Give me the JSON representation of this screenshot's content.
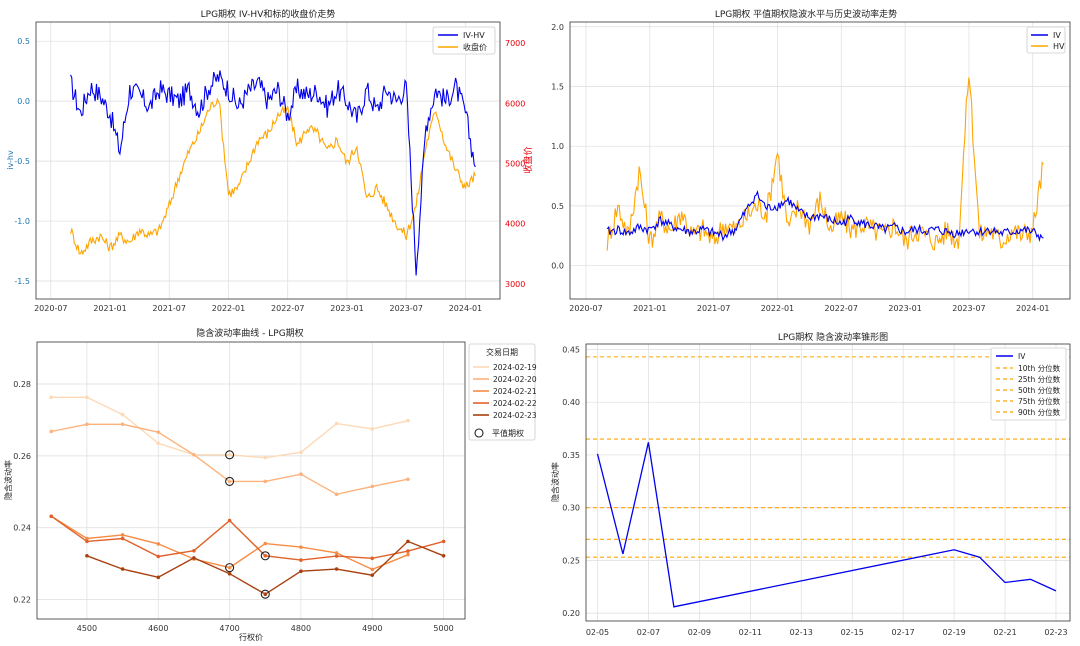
{
  "chart_data": [
    {
      "type": "line",
      "title": "LPG期权 IV-HV和标的收盘价走势",
      "xlabel": "",
      "ylabel": "iv-hv",
      "y2label": "收盘价",
      "x_ticks": [
        "2020-07",
        "2021-01",
        "2021-07",
        "2022-01",
        "2022-07",
        "2023-01",
        "2023-07",
        "2024-01"
      ],
      "y_ticks": [
        "0.5",
        "0.0",
        "-0.5",
        "-1.0",
        "-1.5"
      ],
      "y2_ticks": [
        "7000",
        "6000",
        "5000",
        "4000",
        "3000"
      ],
      "ylim": [
        -1.65,
        0.66
      ],
      "y2lim": [
        2750,
        7350
      ],
      "legend": "top-right",
      "series": [
        {
          "name": "IV-HV",
          "axis": "left",
          "color": "#0000ee",
          "x": [
            "2020-09",
            "2020-10",
            "2020-11",
            "2020-12",
            "2021-01",
            "2021-02",
            "2021-03",
            "2021-04",
            "2021-05",
            "2021-06",
            "2021-07",
            "2021-08",
            "2021-09",
            "2021-10",
            "2021-11",
            "2021-12",
            "2022-01",
            "2022-02",
            "2022-03",
            "2022-04",
            "2022-05",
            "2022-06",
            "2022-07",
            "2022-08",
            "2022-09",
            "2022-10",
            "2022-11",
            "2022-12",
            "2023-01",
            "2023-02",
            "2023-03",
            "2023-04",
            "2023-05",
            "2023-06",
            "2023-07",
            "2023-08",
            "2023-09",
            "2023-10",
            "2023-11",
            "2023-12",
            "2024-01",
            "2024-02"
          ],
          "values": [
            0.15,
            -0.1,
            0.12,
            0.05,
            -0.1,
            -0.42,
            0.1,
            0.05,
            -0.05,
            0.1,
            0.05,
            0.0,
            0.1,
            -0.08,
            0.12,
            0.2,
            0.1,
            -0.05,
            0.08,
            0.15,
            0.0,
            0.1,
            -0.12,
            0.1,
            0.05,
            0.08,
            -0.05,
            0.1,
            0.0,
            -0.15,
            0.1,
            -0.08,
            0.1,
            0.0,
            0.12,
            -1.4,
            -0.2,
            0.1,
            0.0,
            0.12,
            -0.1,
            -0.55
          ]
        },
        {
          "name": "收盘价",
          "axis": "right",
          "color": "#ffa500",
          "x": [
            "2020-09",
            "2020-10",
            "2020-11",
            "2020-12",
            "2021-01",
            "2021-02",
            "2021-03",
            "2021-04",
            "2021-05",
            "2021-06",
            "2021-07",
            "2021-08",
            "2021-09",
            "2021-10",
            "2021-11",
            "2021-12",
            "2022-01",
            "2022-02",
            "2022-03",
            "2022-04",
            "2022-05",
            "2022-06",
            "2022-07",
            "2022-08",
            "2022-09",
            "2022-10",
            "2022-11",
            "2022-12",
            "2023-01",
            "2023-02",
            "2023-03",
            "2023-04",
            "2023-05",
            "2023-06",
            "2023-07",
            "2023-08",
            "2023-09",
            "2023-10",
            "2023-11",
            "2023-12",
            "2024-01",
            "2024-02"
          ],
          "values": [
            3900,
            3500,
            3700,
            3800,
            3600,
            3800,
            3700,
            3900,
            3800,
            3900,
            4300,
            4800,
            5200,
            5500,
            5900,
            6100,
            4500,
            4600,
            5000,
            5400,
            5500,
            5800,
            5900,
            5300,
            5600,
            5500,
            5200,
            5400,
            5000,
            5300,
            4400,
            4600,
            4300,
            4000,
            3800,
            4300,
            5300,
            5900,
            5300,
            4900,
            4600,
            4800
          ]
        }
      ]
    },
    {
      "type": "line",
      "title": "LPG期权 平值期权隐波水平与历史波动率走势",
      "xlabel": "",
      "ylabel": "",
      "x_ticks": [
        "2020-07",
        "2021-01",
        "2021-07",
        "2022-01",
        "2022-07",
        "2023-01",
        "2023-07",
        "2024-01"
      ],
      "y_ticks": [
        "2.0",
        "1.5",
        "1.0",
        "0.5",
        "0.0"
      ],
      "ylim": [
        -0.28,
        2.04
      ],
      "legend": "top-right",
      "series": [
        {
          "name": "IV",
          "color": "#0000ee",
          "x": [
            "2020-09",
            "2020-10",
            "2020-11",
            "2020-12",
            "2021-01",
            "2021-02",
            "2021-03",
            "2021-04",
            "2021-05",
            "2021-06",
            "2021-07",
            "2021-08",
            "2021-09",
            "2021-10",
            "2021-11",
            "2021-12",
            "2022-01",
            "2022-02",
            "2022-03",
            "2022-04",
            "2022-05",
            "2022-06",
            "2022-07",
            "2022-08",
            "2022-09",
            "2022-10",
            "2022-11",
            "2022-12",
            "2023-01",
            "2023-02",
            "2023-03",
            "2023-04",
            "2023-05",
            "2023-06",
            "2023-07",
            "2023-08",
            "2023-09",
            "2023-10",
            "2023-11",
            "2023-12",
            "2024-01",
            "2024-02"
          ],
          "values": [
            0.28,
            0.3,
            0.27,
            0.32,
            0.3,
            0.38,
            0.33,
            0.3,
            0.28,
            0.3,
            0.27,
            0.25,
            0.3,
            0.45,
            0.6,
            0.48,
            0.5,
            0.55,
            0.45,
            0.4,
            0.42,
            0.38,
            0.35,
            0.4,
            0.35,
            0.33,
            0.3,
            0.32,
            0.28,
            0.3,
            0.29,
            0.3,
            0.28,
            0.27,
            0.3,
            0.28,
            0.3,
            0.27,
            0.28,
            0.3,
            0.28,
            0.23
          ]
        },
        {
          "name": "HV",
          "color": "#ffa500",
          "x": [
            "2020-09",
            "2020-10",
            "2020-11",
            "2020-12",
            "2021-01",
            "2021-02",
            "2021-03",
            "2021-04",
            "2021-05",
            "2021-06",
            "2021-07",
            "2021-08",
            "2021-09",
            "2021-10",
            "2021-11",
            "2021-12",
            "2022-01",
            "2022-02",
            "2022-03",
            "2022-04",
            "2022-05",
            "2022-06",
            "2022-07",
            "2022-08",
            "2022-09",
            "2022-10",
            "2022-11",
            "2022-12",
            "2023-01",
            "2023-02",
            "2023-03",
            "2023-04",
            "2023-05",
            "2023-06",
            "2023-07",
            "2023-08",
            "2023-09",
            "2023-10",
            "2023-11",
            "2023-12",
            "2024-01",
            "2024-02"
          ],
          "values": [
            0.2,
            0.5,
            0.25,
            0.8,
            0.2,
            0.4,
            0.3,
            0.45,
            0.25,
            0.3,
            0.2,
            0.35,
            0.3,
            0.4,
            0.5,
            0.45,
            0.96,
            0.3,
            0.5,
            0.35,
            0.55,
            0.3,
            0.4,
            0.3,
            0.35,
            0.3,
            0.25,
            0.35,
            0.2,
            0.3,
            0.25,
            0.2,
            0.3,
            0.2,
            1.65,
            0.25,
            0.3,
            0.2,
            0.3,
            0.25,
            0.3,
            0.85
          ]
        }
      ]
    },
    {
      "type": "line",
      "title": "隐含波动率曲线 - LPG期权",
      "xlabel": "行权价",
      "ylabel": "隐含波动率",
      "x_ticks": [
        "4500",
        "4600",
        "4700",
        "4800",
        "4900",
        "5000"
      ],
      "y_ticks": [
        "0.28",
        "0.26",
        "0.24",
        "0.22"
      ],
      "xlim": [
        4430,
        5030
      ],
      "ylim": [
        0.2146,
        0.2917
      ],
      "legend_title": "交易日期",
      "legend": "top-right",
      "atm_label": "平值期权",
      "series": [
        {
          "name": "2024-02-19",
          "color": "#fdd9b5",
          "x": [
            4450,
            4500,
            4550,
            4600,
            4650,
            4700,
            4750,
            4800,
            4850,
            4900,
            4950
          ],
          "values": [
            0.2763,
            0.2763,
            0.2715,
            0.2635,
            0.2603,
            0.2603,
            0.2595,
            0.261,
            0.269,
            0.2675,
            0.2698
          ],
          "atm_index": 5
        },
        {
          "name": "2024-02-20",
          "color": "#fdb27b",
          "x": [
            4450,
            4500,
            4550,
            4600,
            4650,
            4700,
            4750,
            4800,
            4850,
            4900,
            4950
          ],
          "values": [
            0.2668,
            0.2688,
            0.2688,
            0.2666,
            0.2603,
            0.2529,
            0.2529,
            0.2549,
            0.2493,
            0.2515,
            0.2535
          ],
          "atm_index": 5
        },
        {
          "name": "2024-02-21",
          "color": "#f68c46",
          "x": [
            4450,
            4500,
            4550,
            4600,
            4650,
            4700,
            4750,
            4800,
            4850,
            4900,
            4950
          ],
          "values": [
            0.2432,
            0.237,
            0.238,
            0.2355,
            0.2313,
            0.2289,
            0.2356,
            0.2346,
            0.233,
            0.2284,
            0.2325
          ],
          "atm_index": 5
        },
        {
          "name": "2024-02-22",
          "color": "#e0622a",
          "x": [
            4450,
            4500,
            4550,
            4600,
            4650,
            4700,
            4750,
            4800,
            4850,
            4900,
            4950,
            5000
          ],
          "values": [
            0.2432,
            0.2362,
            0.237,
            0.232,
            0.2336,
            0.242,
            0.2322,
            0.231,
            0.2321,
            0.2315,
            0.2335,
            0.2362
          ],
          "atm_index": 6
        },
        {
          "name": "2024-02-23",
          "color": "#a8410f",
          "x": [
            4500,
            4550,
            4600,
            4650,
            4700,
            4750,
            4800,
            4850,
            4900,
            4950,
            5000
          ],
          "values": [
            0.2322,
            0.2285,
            0.2262,
            0.2316,
            0.2272,
            0.2215,
            0.2279,
            0.2285,
            0.2268,
            0.2362,
            0.2322
          ],
          "atm_index": 5
        }
      ]
    },
    {
      "type": "line",
      "title": "LPG期权 隐含波动率锥形图",
      "xlabel": "",
      "ylabel": "隐含波动率",
      "x_ticks": [
        "02-05",
        "02-07",
        "02-09",
        "02-11",
        "02-13",
        "02-15",
        "02-17",
        "02-19",
        "02-21",
        "02-23"
      ],
      "y_ticks": [
        "0.45",
        "0.40",
        "0.35",
        "0.30",
        "0.25",
        "0.20"
      ],
      "xlim": [
        -0.45,
        18.55
      ],
      "ylim": [
        0.1925,
        0.4552
      ],
      "legend": "top-right",
      "series": [
        {
          "name": "IV",
          "color": "#0000ee",
          "x": [
            0,
            1,
            2,
            3,
            14,
            15,
            16,
            17,
            18
          ],
          "values": [
            0.351,
            0.256,
            0.362,
            0.206,
            0.26,
            0.253,
            0.229,
            0.232,
            0.221
          ]
        }
      ],
      "hlines": [
        {
          "name": "10th 分位数",
          "value": 0.253,
          "color": "#ffa500"
        },
        {
          "name": "25th 分位数",
          "value": 0.27,
          "color": "#ffa500"
        },
        {
          "name": "50th 分位数",
          "value": 0.3,
          "color": "#ffa500"
        },
        {
          "name": "75th 分位数",
          "value": 0.365,
          "color": "#ffa500"
        },
        {
          "name": "90th 分位数",
          "value": 0.443,
          "color": "#ffa500"
        }
      ]
    }
  ]
}
